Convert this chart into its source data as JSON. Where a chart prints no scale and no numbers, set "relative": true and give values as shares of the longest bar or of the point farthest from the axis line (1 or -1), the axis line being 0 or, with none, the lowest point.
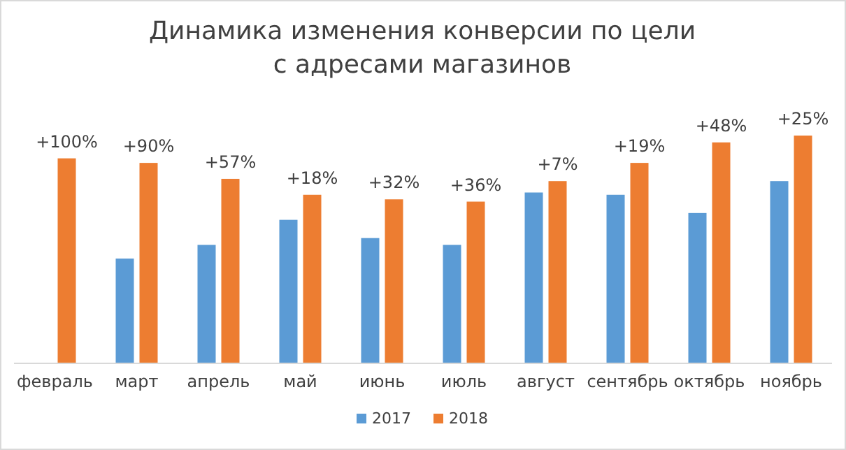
{
  "chart_data": {
    "type": "bar",
    "title": "Динамика изменения конверсии по цели с адресами магазинов",
    "relative": true,
    "legend": "bottom",
    "categories": [
      "февраль",
      "март",
      "апрель",
      "май",
      "июнь",
      "июль",
      "август",
      "сентябрь",
      "октябрь",
      "ноябрь"
    ],
    "series": [
      {
        "name": "2017",
        "color": "#5b9bd5",
        "values": [
          null,
          0.46,
          0.52,
          0.63,
          0.55,
          0.52,
          0.75,
          0.74,
          0.66,
          0.8
        ]
      },
      {
        "name": "2018",
        "color": "#ed7d31",
        "values": [
          0.9,
          0.88,
          0.81,
          0.74,
          0.72,
          0.71,
          0.8,
          0.88,
          0.97,
          1
        ]
      }
    ],
    "annotations": [
      {
        "text": "+100%",
        "x": "февраль",
        "y": 0.9
      },
      {
        "text": "+90%",
        "x": "март",
        "y": 0.88
      },
      {
        "text": "+57%",
        "x": "апрель",
        "y": 0.81
      },
      {
        "text": "+18%",
        "x": "май",
        "y": 0.74
      },
      {
        "text": "+32%",
        "x": "июнь",
        "y": 0.72
      },
      {
        "text": "+36%",
        "x": "июль",
        "y": 0.71
      },
      {
        "text": "+7%",
        "x": "август",
        "y": 0.8
      },
      {
        "text": "+19%",
        "x": "сентябрь",
        "y": 0.88
      },
      {
        "text": "+48%",
        "x": "октябрь",
        "y": 0.97
      },
      {
        "text": "+25%",
        "x": "ноябрь",
        "y": 1
      }
    ]
  }
}
